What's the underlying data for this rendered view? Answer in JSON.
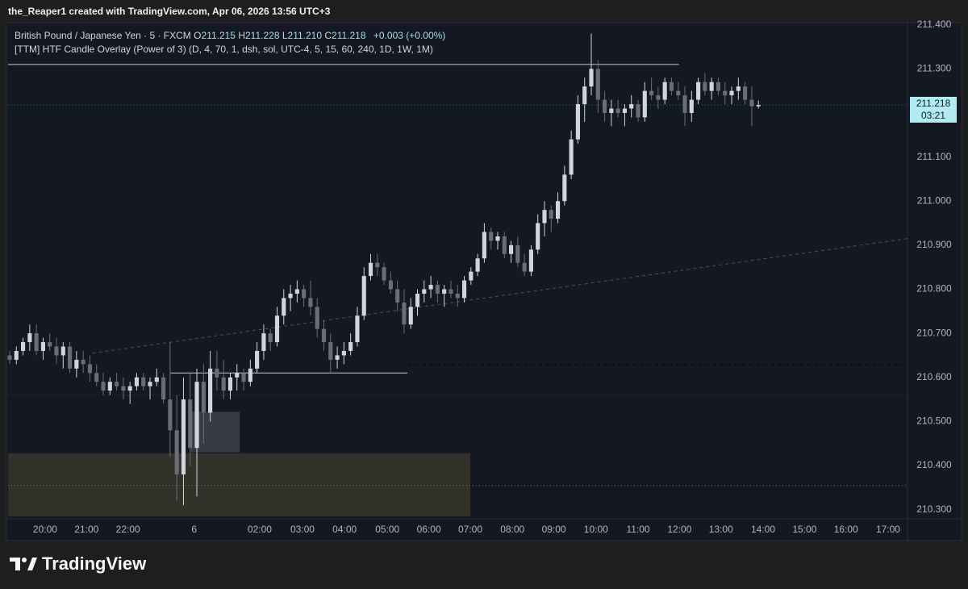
{
  "header": "the_Reaper1 created with TradingView.com, Apr 06, 2026 13:56 UTC+3",
  "footer": "TradingView",
  "chart_data": {
    "type": "candlestick",
    "symbol": "British Pound / Japanese Yen · 5 · FXCM",
    "ohlc_labels": [
      "O",
      "H",
      "L",
      "C"
    ],
    "ohlc_values": [
      "211.215",
      "211.228",
      "211.210",
      "211.218"
    ],
    "change": "+0.003 (+0.00%)",
    "indicator": "[TTM] HTF Candle Overlay (Power of 3) (D, 4, 70, 1, dsh, sol, UTC-4, 5, 15, 60, 240, 1D, 1W, 1M)",
    "price_tag": {
      "price": "211.218",
      "countdown": "03:21"
    },
    "up_color": "#d1d4dc",
    "down_color": "#6a6d78",
    "xlim": [
      -0.24,
      134.3
    ],
    "ylim": [
      210.281,
      211.405
    ],
    "yticks": [
      {
        "value": 211.4,
        "label": "211.400"
      },
      {
        "value": 211.3,
        "label": "211.300"
      },
      {
        "value": 211.2,
        "label": "211.200"
      },
      {
        "value": 211.1,
        "label": "211.100"
      },
      {
        "value": 211.0,
        "label": "211.000"
      },
      {
        "value": 210.9,
        "label": "210.900"
      },
      {
        "value": 210.8,
        "label": "210.800"
      },
      {
        "value": 210.7,
        "label": "210.700"
      },
      {
        "value": 210.6,
        "label": "210.600"
      },
      {
        "value": 210.5,
        "label": "210.500"
      },
      {
        "value": 210.4,
        "label": "210.400"
      },
      {
        "value": 210.3,
        "label": "210.300"
      }
    ],
    "xticks": [
      {
        "value": 5.3,
        "label": "20:00"
      },
      {
        "value": 11.5,
        "label": "21:00"
      },
      {
        "value": 17.7,
        "label": "22:00"
      },
      {
        "value": 27.6,
        "label": "6"
      },
      {
        "value": 37.4,
        "label": "02:00"
      },
      {
        "value": 43.8,
        "label": "03:00"
      },
      {
        "value": 50.1,
        "label": "04:00"
      },
      {
        "value": 56.5,
        "label": "05:00"
      },
      {
        "value": 62.7,
        "label": "06:00"
      },
      {
        "value": 68.9,
        "label": "07:00"
      },
      {
        "value": 75.2,
        "label": "08:00"
      },
      {
        "value": 81.4,
        "label": "09:00"
      },
      {
        "value": 87.7,
        "label": "10:00"
      },
      {
        "value": 94.0,
        "label": "11:00"
      },
      {
        "value": 100.2,
        "label": "12:00"
      },
      {
        "value": 106.4,
        "label": "13:00"
      },
      {
        "value": 112.7,
        "label": "14:00"
      },
      {
        "value": 118.9,
        "label": "15:00"
      },
      {
        "value": 125.1,
        "label": "16:00"
      },
      {
        "value": 131.4,
        "label": "17:00"
      }
    ],
    "zones": [
      {
        "low": 210.285,
        "high": 210.428,
        "from": -0.24,
        "to": 68.9,
        "color": "#35352b"
      },
      {
        "low": 210.43,
        "high": 210.522,
        "from": 27.1,
        "to": 34.4,
        "color": "#3b3f4a"
      }
    ],
    "levels": [
      {
        "value": 211.31,
        "from": -0.24,
        "to": 100.1,
        "color": "#c8cad0",
        "dash": "none"
      },
      {
        "value": 210.61,
        "from": 24.0,
        "to": 59.5,
        "color": "#c8cad0",
        "dash": "none"
      },
      {
        "value": 211.218,
        "from": -0.24,
        "to": 134.3,
        "color": "#2f6f78",
        "dash": "1 3"
      },
      {
        "value": 210.628,
        "from": 59.5,
        "to": 134.3,
        "color": "#05070c",
        "dash": "5 4"
      },
      {
        "value": 210.56,
        "from": -0.24,
        "to": 134.3,
        "color": "#3b3560",
        "dash": "1 3"
      },
      {
        "value": 210.355,
        "from": -0.24,
        "to": 134.3,
        "color": "#a8622a",
        "dash": "1 3"
      }
    ],
    "trend_line": {
      "x": [
        12.4,
        134.3
      ],
      "y": [
        210.655,
        210.915
      ],
      "color": "#4a4e5a"
    },
    "candles": [
      [
        210.65,
        210.66,
        210.63,
        210.64
      ],
      [
        210.64,
        210.67,
        210.63,
        210.66
      ],
      [
        210.66,
        210.69,
        210.65,
        210.68
      ],
      [
        210.68,
        210.72,
        210.66,
        210.7
      ],
      [
        210.7,
        210.72,
        210.65,
        210.66
      ],
      [
        210.66,
        210.69,
        210.64,
        210.68
      ],
      [
        210.68,
        210.7,
        210.66,
        210.67
      ],
      [
        210.67,
        210.69,
        210.63,
        210.65
      ],
      [
        210.65,
        210.68,
        210.62,
        210.67
      ],
      [
        210.67,
        210.68,
        210.61,
        210.62
      ],
      [
        210.62,
        210.66,
        210.6,
        210.64
      ],
      [
        210.64,
        210.66,
        210.61,
        210.63
      ],
      [
        210.63,
        210.65,
        210.59,
        210.61
      ],
      [
        210.61,
        210.63,
        210.58,
        210.59
      ],
      [
        210.59,
        210.61,
        210.56,
        210.57
      ],
      [
        210.57,
        210.6,
        210.56,
        210.59
      ],
      [
        210.59,
        210.61,
        210.57,
        210.58
      ],
      [
        210.58,
        210.6,
        210.55,
        210.57
      ],
      [
        210.57,
        210.59,
        210.54,
        210.58
      ],
      [
        210.58,
        210.61,
        210.57,
        210.6
      ],
      [
        210.6,
        210.61,
        210.57,
        210.58
      ],
      [
        210.58,
        210.6,
        210.55,
        210.59
      ],
      [
        210.59,
        210.62,
        210.58,
        210.6
      ],
      [
        210.6,
        210.61,
        210.54,
        210.55
      ],
      [
        210.55,
        210.68,
        210.42,
        210.48
      ],
      [
        210.48,
        210.56,
        210.32,
        210.38
      ],
      [
        210.38,
        210.6,
        210.31,
        210.55
      ],
      [
        210.55,
        210.61,
        210.4,
        210.44
      ],
      [
        210.44,
        210.62,
        210.33,
        210.59
      ],
      [
        210.59,
        210.63,
        210.45,
        210.52
      ],
      [
        210.52,
        210.66,
        210.5,
        210.62
      ],
      [
        210.62,
        210.66,
        210.57,
        210.6
      ],
      [
        210.6,
        210.64,
        210.55,
        210.57
      ],
      [
        210.57,
        210.61,
        210.55,
        210.6
      ],
      [
        210.6,
        210.63,
        210.57,
        210.61
      ],
      [
        210.61,
        210.62,
        210.57,
        210.59
      ],
      [
        210.59,
        210.64,
        210.58,
        210.62
      ],
      [
        210.62,
        210.68,
        210.61,
        210.66
      ],
      [
        210.66,
        210.72,
        210.64,
        210.7
      ],
      [
        210.7,
        210.71,
        210.66,
        210.68
      ],
      [
        210.68,
        210.76,
        210.67,
        210.74
      ],
      [
        210.74,
        210.8,
        210.72,
        210.78
      ],
      [
        210.78,
        210.81,
        210.75,
        210.79
      ],
      [
        210.79,
        210.82,
        210.77,
        210.8
      ],
      [
        210.8,
        210.81,
        210.76,
        210.78
      ],
      [
        210.78,
        210.82,
        210.74,
        210.76
      ],
      [
        210.76,
        210.78,
        210.69,
        210.71
      ],
      [
        210.71,
        210.73,
        210.66,
        210.68
      ],
      [
        210.68,
        210.7,
        210.61,
        210.64
      ],
      [
        210.64,
        210.67,
        210.62,
        210.65
      ],
      [
        210.65,
        210.68,
        210.63,
        210.66
      ],
      [
        210.66,
        210.7,
        210.65,
        210.68
      ],
      [
        210.68,
        210.76,
        210.67,
        210.74
      ],
      [
        210.74,
        210.85,
        210.73,
        210.83
      ],
      [
        210.83,
        210.88,
        210.82,
        210.86
      ],
      [
        210.86,
        210.88,
        210.83,
        210.85
      ],
      [
        210.85,
        210.86,
        210.81,
        210.82
      ],
      [
        210.82,
        210.84,
        210.79,
        210.8
      ],
      [
        210.8,
        210.82,
        210.75,
        210.77
      ],
      [
        210.77,
        210.8,
        210.7,
        210.72
      ],
      [
        210.72,
        210.78,
        210.71,
        210.76
      ],
      [
        210.76,
        210.8,
        210.74,
        210.79
      ],
      [
        210.79,
        210.82,
        210.77,
        210.8
      ],
      [
        210.8,
        210.83,
        210.78,
        210.81
      ],
      [
        210.81,
        210.82,
        210.77,
        210.79
      ],
      [
        210.79,
        210.81,
        210.76,
        210.8
      ],
      [
        210.8,
        210.82,
        210.78,
        210.79
      ],
      [
        210.79,
        210.81,
        210.76,
        210.78
      ],
      [
        210.78,
        210.83,
        210.77,
        210.82
      ],
      [
        210.82,
        210.85,
        210.81,
        210.84
      ],
      [
        210.84,
        210.88,
        210.83,
        210.87
      ],
      [
        210.87,
        210.95,
        210.86,
        210.93
      ],
      [
        210.93,
        210.94,
        210.89,
        210.91
      ],
      [
        210.91,
        210.93,
        210.89,
        210.92
      ],
      [
        210.92,
        210.93,
        210.87,
        210.88
      ],
      [
        210.88,
        210.91,
        210.86,
        210.9
      ],
      [
        210.9,
        210.92,
        210.85,
        210.86
      ],
      [
        210.86,
        210.88,
        210.83,
        210.84
      ],
      [
        210.84,
        210.9,
        210.83,
        210.89
      ],
      [
        210.89,
        210.97,
        210.88,
        210.95
      ],
      [
        210.95,
        211.0,
        210.92,
        210.98
      ],
      [
        210.98,
        210.99,
        210.93,
        210.96
      ],
      [
        210.96,
        211.02,
        210.95,
        211.0
      ],
      [
        211.0,
        211.08,
        210.99,
        211.06
      ],
      [
        211.06,
        211.16,
        211.05,
        211.14
      ],
      [
        211.14,
        211.24,
        211.13,
        211.22
      ],
      [
        211.22,
        211.28,
        211.18,
        211.26
      ],
      [
        211.26,
        211.38,
        211.24,
        211.3
      ],
      [
        211.3,
        211.32,
        211.2,
        211.23
      ],
      [
        211.23,
        211.25,
        211.18,
        211.2
      ],
      [
        211.2,
        211.23,
        211.17,
        211.21
      ],
      [
        211.21,
        211.23,
        211.19,
        211.2
      ],
      [
        211.2,
        211.22,
        211.17,
        211.21
      ],
      [
        211.21,
        211.24,
        211.19,
        211.22
      ],
      [
        211.22,
        211.23,
        211.18,
        211.19
      ],
      [
        211.19,
        211.27,
        211.18,
        211.25
      ],
      [
        211.25,
        211.28,
        211.23,
        211.24
      ],
      [
        211.24,
        211.26,
        211.21,
        211.23
      ],
      [
        211.23,
        211.28,
        211.22,
        211.27
      ],
      [
        211.27,
        211.28,
        211.24,
        211.25
      ],
      [
        211.25,
        211.27,
        211.23,
        211.24
      ],
      [
        211.24,
        211.26,
        211.17,
        211.2
      ],
      [
        211.2,
        211.25,
        211.18,
        211.23
      ],
      [
        211.23,
        211.28,
        211.22,
        211.27
      ],
      [
        211.27,
        211.29,
        211.24,
        211.25
      ],
      [
        211.25,
        211.28,
        211.23,
        211.27
      ],
      [
        211.27,
        211.28,
        211.24,
        211.25
      ],
      [
        211.25,
        211.27,
        211.22,
        211.24
      ],
      [
        211.24,
        211.26,
        211.22,
        211.25
      ],
      [
        211.25,
        211.28,
        211.23,
        211.26
      ],
      [
        211.26,
        211.27,
        211.22,
        211.23
      ],
      [
        211.23,
        211.26,
        211.17,
        211.215
      ],
      [
        211.215,
        211.228,
        211.21,
        211.218
      ]
    ]
  }
}
